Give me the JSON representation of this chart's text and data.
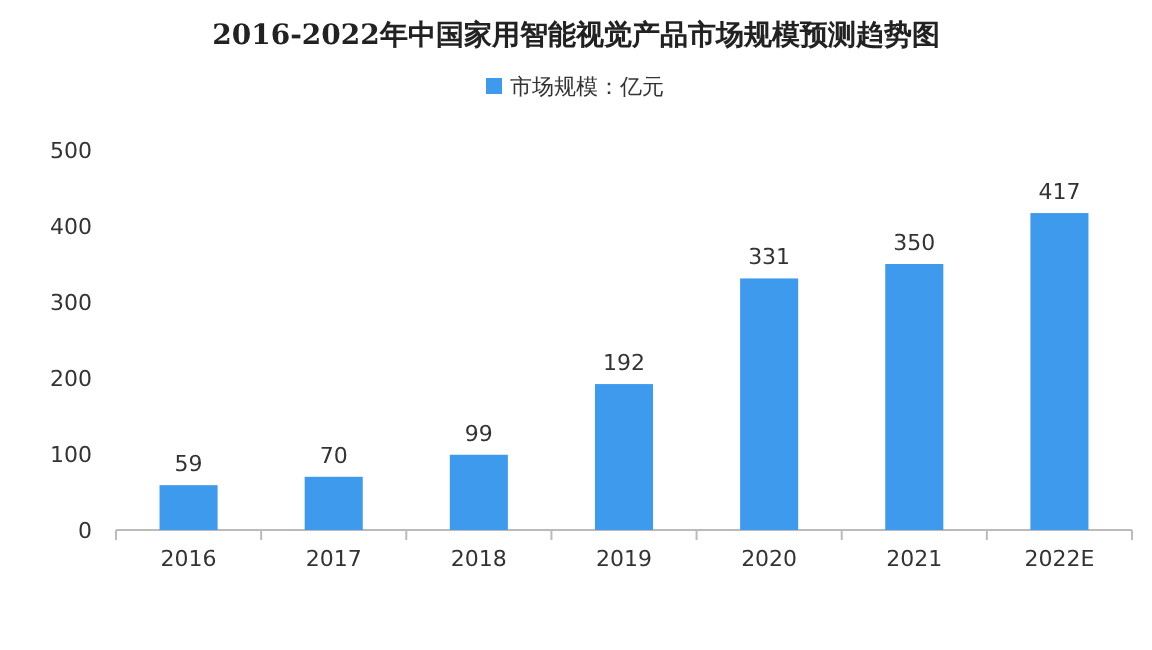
{
  "chart_data": {
    "type": "bar",
    "title": "2016-2022年中国家用智能视觉产品市场规模预测趋势图",
    "categories": [
      "2016",
      "2017",
      "2018",
      "2019",
      "2020",
      "2021",
      "2022E"
    ],
    "series": [
      {
        "name": "市场规模：亿元",
        "color": "#3d9aec",
        "values": [
          59,
          70,
          99,
          192,
          331,
          350,
          417
        ]
      }
    ],
    "ylim": [
      0,
      500
    ],
    "yticks": [
      0,
      100,
      200,
      300,
      400,
      500
    ],
    "data_labels": true,
    "legend": "top"
  }
}
